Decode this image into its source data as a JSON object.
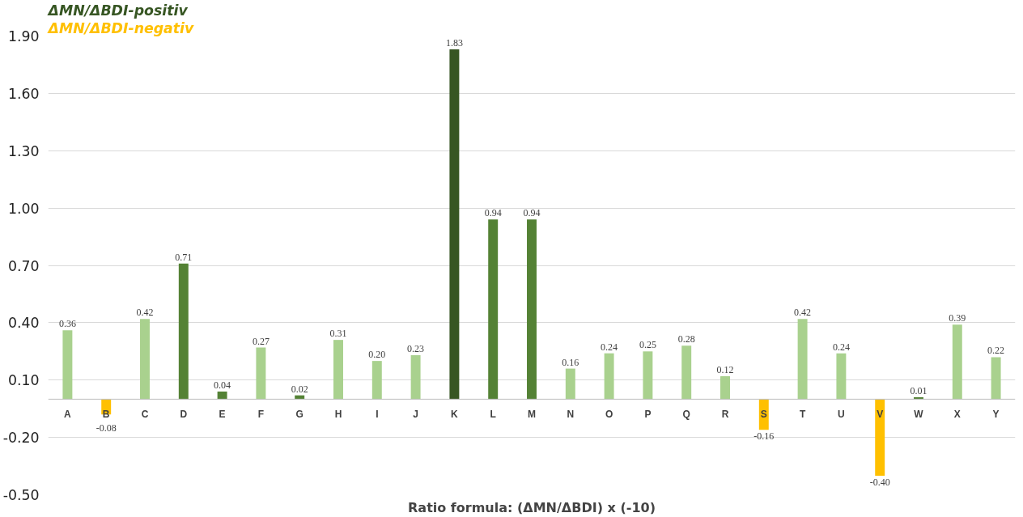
{
  "chart_data": {
    "type": "bar",
    "categories": [
      "A",
      "B",
      "C",
      "D",
      "E",
      "F",
      "G",
      "H",
      "I",
      "J",
      "K",
      "L",
      "M",
      "N",
      "O",
      "P",
      "Q",
      "R",
      "S",
      "T",
      "U",
      "V",
      "W",
      "X",
      "Y"
    ],
    "series": [
      {
        "name": "ΔMN/ΔBDI-positiv",
        "color": "#375623",
        "values": [
          null,
          null,
          null,
          null,
          null,
          null,
          null,
          null,
          null,
          null,
          1.83,
          null,
          null,
          null,
          null,
          null,
          null,
          null,
          null,
          null,
          null,
          null,
          null,
          null,
          null
        ],
        "value_labels": [
          null,
          null,
          null,
          null,
          null,
          null,
          null,
          null,
          null,
          null,
          "1.83",
          null,
          null,
          null,
          null,
          null,
          null,
          null,
          null,
          null,
          null,
          null,
          null,
          null,
          null
        ]
      },
      {
        "color": "#548235",
        "values": [
          null,
          null,
          null,
          0.71,
          0.04,
          null,
          0.02,
          null,
          null,
          null,
          null,
          0.94,
          0.94,
          null,
          null,
          null,
          null,
          null,
          null,
          null,
          null,
          null,
          0.01,
          null,
          null
        ],
        "value_labels": [
          null,
          null,
          null,
          "0.71",
          "0.04",
          null,
          "0.02",
          null,
          null,
          null,
          null,
          "0.94",
          "0.94",
          null,
          null,
          null,
          null,
          null,
          null,
          null,
          null,
          null,
          "0.01",
          null,
          null
        ]
      },
      {
        "color": "#a9d18e",
        "values": [
          0.36,
          null,
          0.42,
          null,
          null,
          0.27,
          null,
          0.31,
          0.2,
          0.23,
          null,
          null,
          null,
          0.16,
          0.24,
          0.25,
          0.28,
          0.12,
          null,
          0.42,
          0.24,
          null,
          null,
          0.39,
          0.22
        ],
        "value_labels": [
          "0.36",
          null,
          "0.42",
          null,
          null,
          "0.27",
          null,
          "0.31",
          "0.20",
          "0.23",
          null,
          null,
          null,
          "0.16",
          "0.24",
          "0.25",
          "0.28",
          "0.12",
          null,
          "0.42",
          "0.24",
          null,
          null,
          "0.39",
          "0.22"
        ]
      },
      {
        "name": "ΔMN/ΔBDI-negativ",
        "color": "#ffc000",
        "values": [
          null,
          -0.08,
          null,
          null,
          null,
          null,
          null,
          null,
          null,
          null,
          null,
          null,
          null,
          null,
          null,
          null,
          null,
          null,
          -0.16,
          null,
          null,
          -0.4,
          null,
          null,
          null
        ],
        "value_labels": [
          null,
          "-0.08",
          null,
          null,
          null,
          null,
          null,
          null,
          null,
          null,
          null,
          null,
          null,
          null,
          null,
          null,
          null,
          null,
          "-0.16",
          null,
          null,
          "-0.40",
          null,
          null,
          null
        ]
      }
    ],
    "xlabel": "Ratio formula: (ΔMN/ΔBDI) x (-10)",
    "ylim": [
      -0.5,
      1.9
    ],
    "yticks": [
      {
        "value": -0.5,
        "label": "-0.50"
      },
      {
        "value": -0.2,
        "label": "-0.20"
      },
      {
        "value": 0.1,
        "label": "0.10"
      },
      {
        "value": 0.4,
        "label": "0.40"
      },
      {
        "value": 0.7,
        "label": "0.70"
      },
      {
        "value": 1.0,
        "label": "1.00"
      },
      {
        "value": 1.3,
        "label": "1.30"
      },
      {
        "value": 1.6,
        "label": "1.60"
      },
      {
        "value": 1.9,
        "label": "1.90"
      }
    ],
    "grid": "y",
    "legend": "top left",
    "data_labels": true
  }
}
